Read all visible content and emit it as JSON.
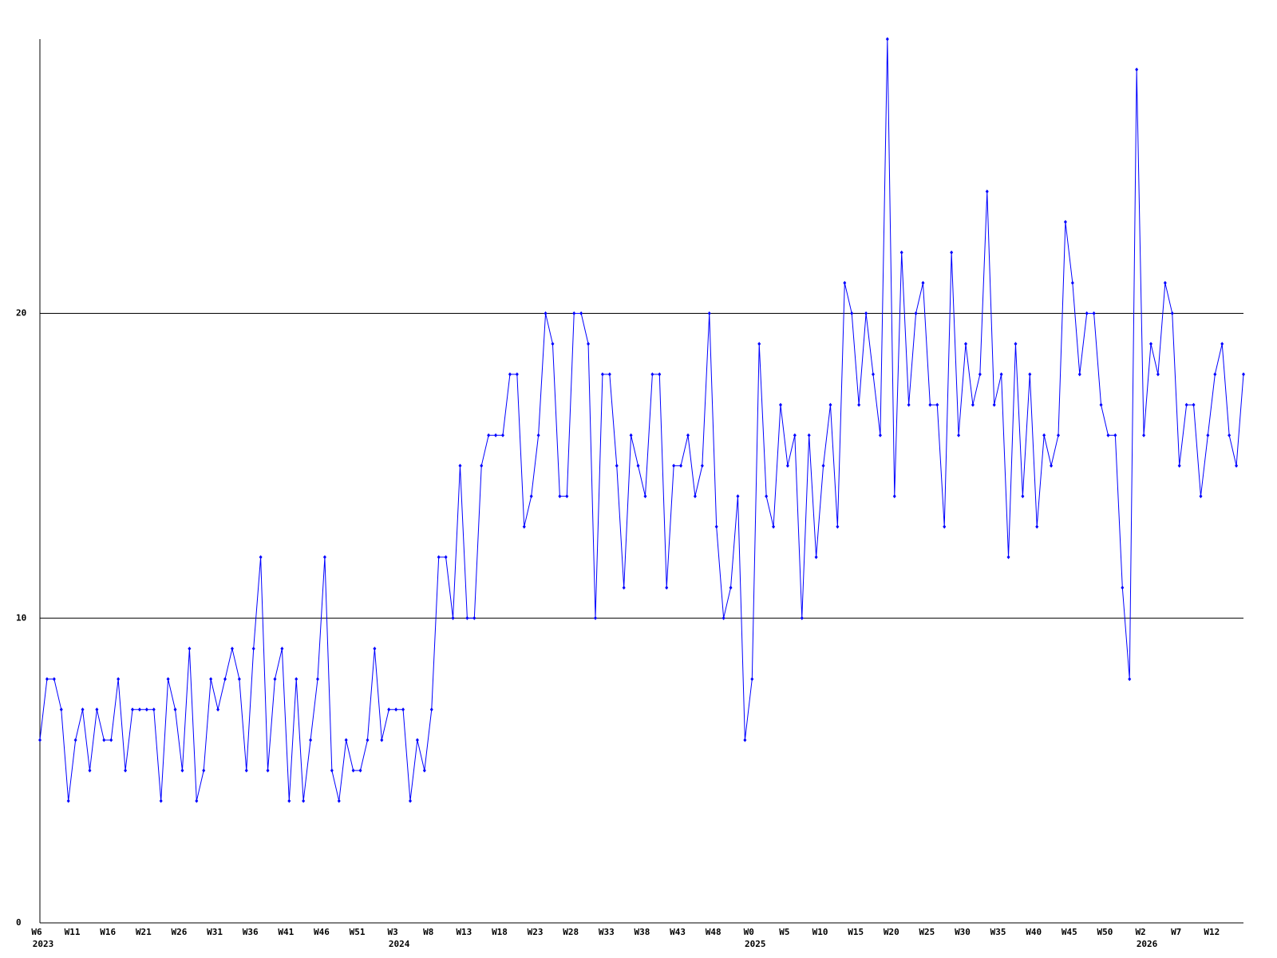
{
  "chart_data": {
    "type": "line",
    "categories": [
      "W6",
      null,
      null,
      null,
      null,
      "W11",
      null,
      null,
      null,
      null,
      "W16",
      null,
      null,
      null,
      null,
      "W21",
      null,
      null,
      null,
      null,
      "W26",
      null,
      null,
      null,
      null,
      "W31",
      null,
      null,
      null,
      null,
      "W36",
      null,
      null,
      null,
      null,
      "W41",
      null,
      null,
      null,
      null,
      "W46",
      null,
      null,
      null,
      null,
      "W51",
      null,
      null,
      null,
      null,
      "W3",
      null,
      null,
      null,
      null,
      "W8",
      null,
      null,
      null,
      null,
      "W13",
      null,
      null,
      null,
      null,
      "W18",
      null,
      null,
      null,
      null,
      "W23",
      null,
      null,
      null,
      null,
      "W28",
      null,
      null,
      null,
      null,
      "W33",
      null,
      null,
      null,
      null,
      "W38",
      null,
      null,
      null,
      null,
      "W43",
      null,
      null,
      null,
      null,
      "W48",
      null,
      null,
      null,
      null,
      "W0",
      null,
      null,
      null,
      null,
      "W5",
      null,
      null,
      null,
      null,
      "W10",
      null,
      null,
      null,
      null,
      "W15",
      null,
      null,
      null,
      null,
      "W20",
      null,
      null,
      null,
      null,
      "W25",
      null,
      null,
      null,
      null,
      "W30",
      null,
      null,
      null,
      null,
      "W35",
      null,
      null,
      null,
      null,
      "W40",
      null,
      null,
      null,
      null,
      "W45",
      null,
      null,
      null,
      null,
      "W50",
      null,
      null,
      null,
      null,
      "W2",
      null,
      null,
      null,
      null,
      "W7",
      null,
      null,
      null,
      null,
      "W12",
      null,
      null,
      null,
      null
    ],
    "category_years": [
      "2023",
      null,
      null,
      null,
      null,
      null,
      null,
      null,
      null,
      null,
      null,
      null,
      null,
      null,
      null,
      null,
      null,
      null,
      null,
      null,
      null,
      null,
      null,
      null,
      null,
      null,
      null,
      null,
      null,
      null,
      null,
      null,
      null,
      null,
      null,
      null,
      null,
      null,
      null,
      null,
      null,
      null,
      null,
      null,
      null,
      null,
      null,
      null,
      null,
      null,
      "2024",
      null,
      null,
      null,
      null,
      null,
      null,
      null,
      null,
      null,
      null,
      null,
      null,
      null,
      null,
      null,
      null,
      null,
      null,
      null,
      null,
      null,
      null,
      null,
      null,
      null,
      null,
      null,
      null,
      null,
      null,
      null,
      null,
      null,
      null,
      null,
      null,
      null,
      null,
      null,
      null,
      null,
      null,
      null,
      null,
      null,
      null,
      null,
      null,
      null,
      "2025",
      null,
      null,
      null,
      null,
      null,
      null,
      null,
      null,
      null,
      null,
      null,
      null,
      null,
      null,
      null,
      null,
      null,
      null,
      null,
      null,
      null,
      null,
      null,
      null,
      null,
      null,
      null,
      null,
      null,
      null,
      null,
      null,
      null,
      null,
      null,
      null,
      null,
      null,
      null,
      null,
      null,
      null,
      null,
      null,
      null,
      null,
      null,
      null,
      null,
      null,
      null,
      null,
      null,
      null,
      "2026",
      null,
      null,
      null,
      null,
      null,
      null,
      null,
      null,
      null,
      null,
      null,
      null,
      null,
      null
    ],
    "series": [
      {
        "color": "#0000ff",
        "values": [
          6,
          8,
          8,
          7,
          4,
          6,
          7,
          5,
          7,
          6,
          6,
          8,
          5,
          7,
          7,
          7,
          7,
          4,
          8,
          7,
          5,
          9,
          4,
          5,
          8,
          7,
          8,
          9,
          8,
          5,
          9,
          12,
          5,
          8,
          9,
          4,
          8,
          4,
          6,
          8,
          12,
          5,
          4,
          6,
          5,
          5,
          6,
          9,
          6,
          7,
          7,
          7,
          4,
          6,
          5,
          7,
          12,
          12,
          10,
          15,
          10,
          10,
          15,
          16,
          16,
          16,
          18,
          18,
          13,
          14,
          16,
          20,
          19,
          14,
          14,
          20,
          20,
          19,
          10,
          18,
          18,
          15,
          11,
          16,
          15,
          14,
          18,
          18,
          11,
          15,
          15,
          16,
          14,
          15,
          20,
          13,
          10,
          11,
          14,
          6,
          8,
          19,
          14,
          13,
          17,
          15,
          16,
          10,
          16,
          12,
          15,
          17,
          13,
          21,
          20,
          17,
          20,
          18,
          16,
          29,
          14,
          22,
          17,
          20,
          21,
          17,
          17,
          13,
          22,
          16,
          19,
          17,
          18,
          24,
          17,
          18,
          12,
          19,
          14,
          18,
          13,
          16,
          15,
          16,
          23,
          21,
          18,
          20,
          20,
          17,
          16,
          16,
          11,
          8,
          28,
          16,
          19,
          18,
          21,
          20,
          15,
          17,
          17,
          14,
          16,
          18,
          19,
          16,
          15,
          18
        ]
      }
    ],
    "ylim": [
      0,
      29
    ],
    "yticks": [
      0,
      10,
      20
    ],
    "grid": true
  }
}
